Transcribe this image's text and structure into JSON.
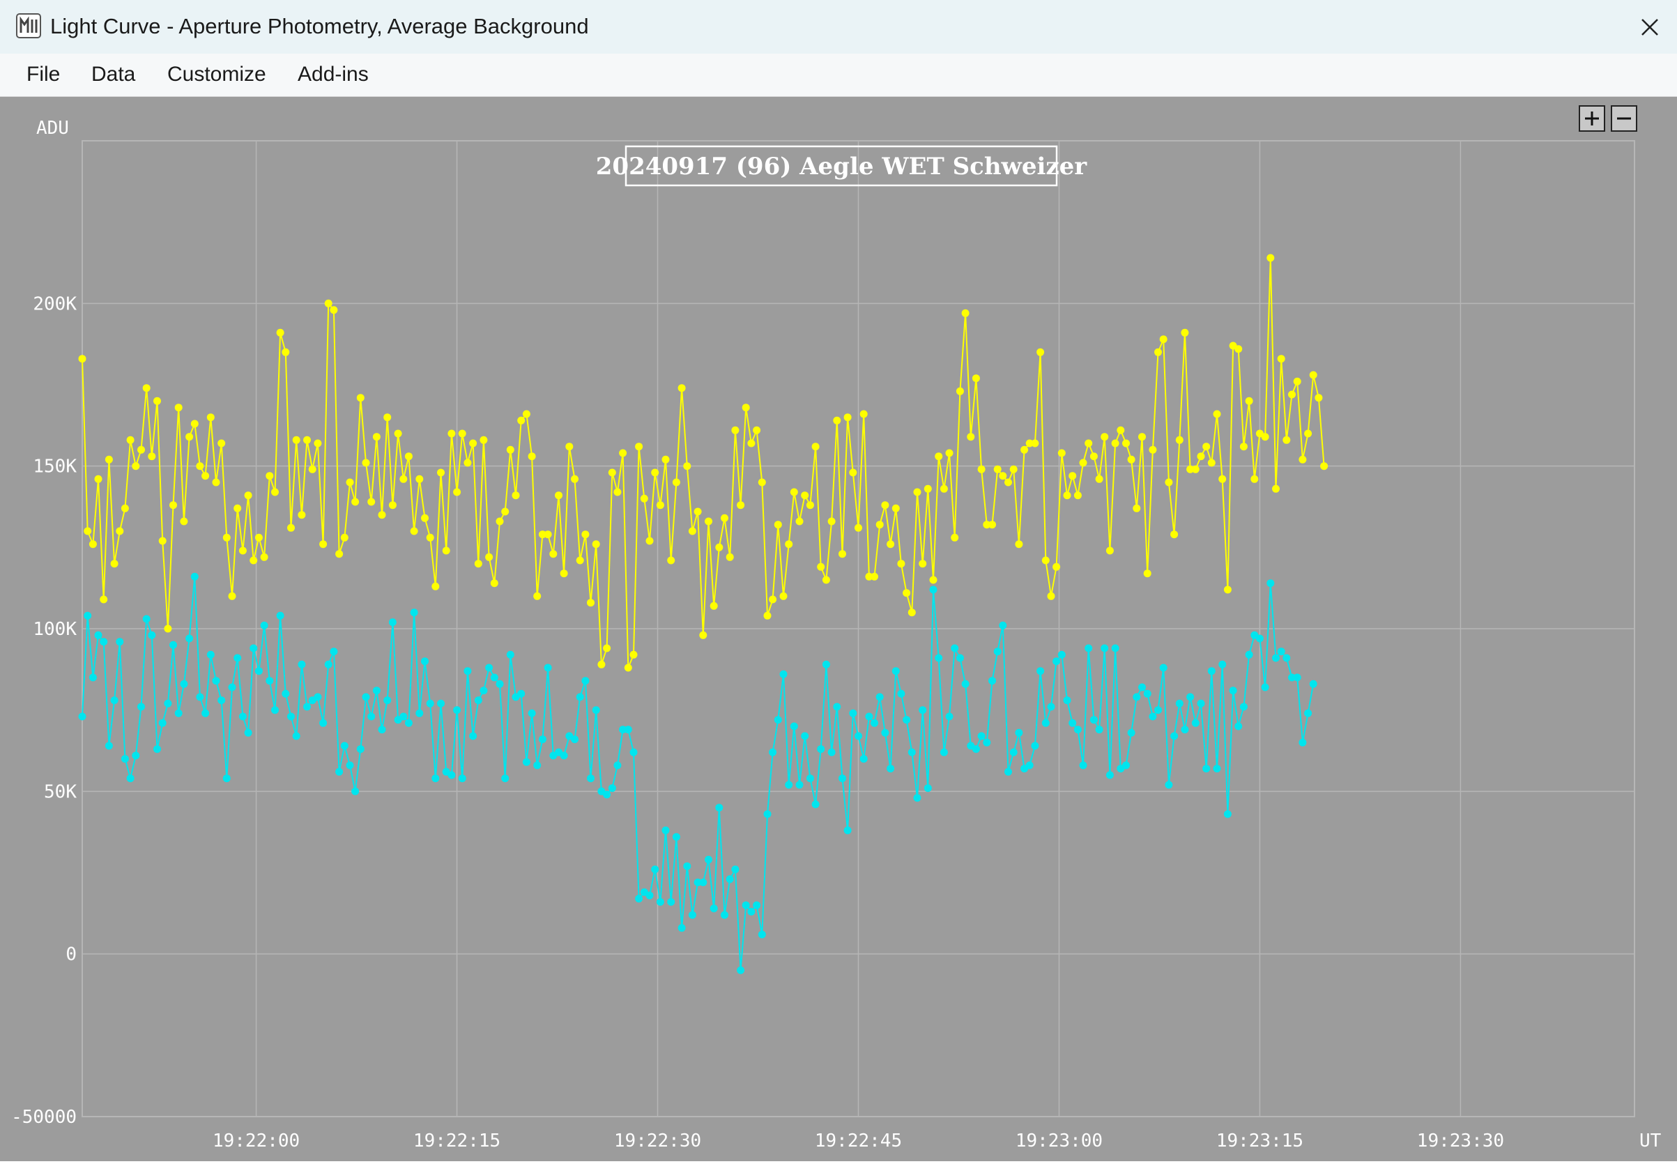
{
  "window": {
    "title": "Light Curve - Aperture Photometry, Average Background",
    "app_icon": "light-curve-icon",
    "close_icon": "close-icon"
  },
  "menu": {
    "items": [
      "File",
      "Data",
      "Customize",
      "Add-ins"
    ]
  },
  "toolbar": {
    "zoom_in_icon": "plus-icon",
    "zoom_out_icon": "minus-icon"
  },
  "colors": {
    "plot_background": "#9c9c9c",
    "grid": "#b6b6b6",
    "target_series": "#ffff00",
    "comparison_series": "#00e5ee",
    "axis_text": "#ffffff"
  },
  "chart_data": {
    "type": "line",
    "title": "20240917 (96) Aegle WET Schweizer",
    "ylabel": "ADU",
    "xlabel": "UT",
    "ylim": [
      -50000,
      250000
    ],
    "xlim": [
      "19:21:47",
      "19:23:43"
    ],
    "y_ticks": [
      -50000,
      0,
      50000,
      100000,
      150000,
      200000
    ],
    "y_tick_labels": [
      "-50000",
      "0",
      "50K",
      "100K",
      "150K",
      "200K"
    ],
    "x_ticks": [
      "19:22:00",
      "19:22:15",
      "19:22:30",
      "19:22:45",
      "19:23:00",
      "19:23:15",
      "19:23:30"
    ],
    "x_tick_labels": [
      "19:22:00",
      "19:22:15",
      "19:22:30",
      "19:22:45",
      "19:23:00",
      "19:23:15",
      "19:23:30"
    ],
    "grid": true,
    "marker": "dot",
    "sample_interval_s": 0.4,
    "series": [
      {
        "color": "#ffff00",
        "values": [
          183000,
          130000,
          126000,
          146000,
          109000,
          152000,
          120000,
          130000,
          137000,
          158000,
          150000,
          155000,
          174000,
          153000,
          170000,
          127000,
          100000,
          138000,
          168000,
          133000,
          159000,
          163000,
          150000,
          147000,
          165000,
          145000,
          157000,
          128000,
          110000,
          137000,
          124000,
          141000,
          121000,
          128000,
          122000,
          147000,
          142000,
          191000,
          185000,
          131000,
          158000,
          135000,
          158000,
          149000,
          157000,
          126000,
          200000,
          198000,
          123000,
          128000,
          145000,
          139000,
          171000,
          151000,
          139000,
          159000,
          135000,
          165000,
          138000,
          160000,
          146000,
          153000,
          130000,
          146000,
          134000,
          128000,
          113000,
          148000,
          124000,
          160000,
          142000,
          160000,
          151000,
          157000,
          120000,
          158000,
          122000,
          114000,
          133000,
          136000,
          155000,
          141000,
          164000,
          166000,
          153000,
          110000,
          129000,
          129000,
          123000,
          141000,
          117000,
          156000,
          146000,
          121000,
          129000,
          108000,
          126000,
          89000,
          94000,
          148000,
          142000,
          154000,
          88000,
          92000,
          156000,
          140000,
          127000,
          148000,
          138000,
          152000,
          121000,
          145000,
          174000,
          150000,
          130000,
          136000,
          98000,
          133000,
          107000,
          125000,
          134000,
          122000,
          161000,
          138000,
          168000,
          157000,
          161000,
          145000,
          104000,
          109000,
          132000,
          110000,
          126000,
          142000,
          133000,
          141000,
          138000,
          156000,
          119000,
          115000,
          133000,
          164000,
          123000,
          165000,
          148000,
          131000,
          166000,
          116000,
          116000,
          132000,
          138000,
          126000,
          137000,
          120000,
          111000,
          105000,
          142000,
          120000,
          143000,
          115000,
          153000,
          143000,
          154000,
          128000,
          173000,
          197000,
          159000,
          177000,
          149000,
          132000,
          132000,
          149000,
          147000,
          145000,
          149000,
          126000,
          155000,
          157000,
          157000,
          185000,
          121000,
          110000,
          119000,
          154000,
          141000,
          147000,
          141000,
          151000,
          157000,
          153000,
          146000,
          159000,
          124000,
          157000,
          161000,
          157000,
          152000,
          137000,
          159000,
          117000,
          155000,
          185000,
          189000,
          145000,
          129000,
          158000,
          191000,
          149000,
          149000,
          153000,
          156000,
          151000,
          166000,
          146000,
          112000,
          187000,
          186000,
          156000,
          170000,
          146000,
          160000,
          159000,
          214000,
          143000,
          183000,
          158000,
          172000,
          176000,
          152000,
          160000,
          178000,
          171000,
          150000
        ]
      },
      {
        "color": "#00e5ee",
        "values": [
          73000,
          104000,
          85000,
          98000,
          96000,
          64000,
          78000,
          96000,
          60000,
          54000,
          61000,
          76000,
          103000,
          98000,
          63000,
          71000,
          77000,
          95000,
          74000,
          83000,
          97000,
          116000,
          79000,
          74000,
          92000,
          84000,
          78000,
          54000,
          82000,
          91000,
          73000,
          68000,
          94000,
          87000,
          101000,
          84000,
          75000,
          104000,
          80000,
          73000,
          67000,
          89000,
          76000,
          78000,
          79000,
          71000,
          89000,
          93000,
          56000,
          64000,
          58000,
          50000,
          63000,
          79000,
          73000,
          81000,
          69000,
          78000,
          102000,
          72000,
          73000,
          71000,
          105000,
          74000,
          90000,
          77000,
          54000,
          77000,
          56000,
          55000,
          75000,
          54000,
          87000,
          67000,
          78000,
          81000,
          88000,
          85000,
          83000,
          54000,
          92000,
          79000,
          80000,
          59000,
          74000,
          58000,
          66000,
          88000,
          61000,
          62000,
          61000,
          67000,
          66000,
          79000,
          84000,
          54000,
          75000,
          50000,
          49000,
          51000,
          58000,
          69000,
          69000,
          62000,
          17000,
          19000,
          18000,
          26000,
          16000,
          38000,
          16000,
          36000,
          8000,
          27000,
          12000,
          22000,
          22000,
          29000,
          14000,
          45000,
          12000,
          23000,
          26000,
          -5000,
          15000,
          13000,
          15000,
          6000,
          43000,
          62000,
          72000,
          86000,
          52000,
          70000,
          52000,
          67000,
          54000,
          46000,
          63000,
          89000,
          62000,
          76000,
          54000,
          38000,
          74000,
          67000,
          60000,
          73000,
          71000,
          79000,
          68000,
          57000,
          87000,
          80000,
          72000,
          62000,
          48000,
          75000,
          51000,
          112000,
          91000,
          62000,
          73000,
          94000,
          91000,
          83000,
          64000,
          63000,
          67000,
          65000,
          84000,
          93000,
          101000,
          56000,
          62000,
          68000,
          57000,
          58000,
          64000,
          87000,
          71000,
          76000,
          90000,
          92000,
          78000,
          71000,
          69000,
          58000,
          94000,
          72000,
          69000,
          94000,
          55000,
          94000,
          57000,
          58000,
          68000,
          79000,
          82000,
          80000,
          73000,
          75000,
          88000,
          52000,
          67000,
          77000,
          69000,
          79000,
          71000,
          77000,
          57000,
          87000,
          57000,
          89000,
          43000,
          81000,
          70000,
          76000,
          92000,
          98000,
          97000,
          82000,
          114000,
          91000,
          93000,
          91000,
          85000,
          85000,
          65000,
          74000,
          83000
        ]
      }
    ]
  }
}
